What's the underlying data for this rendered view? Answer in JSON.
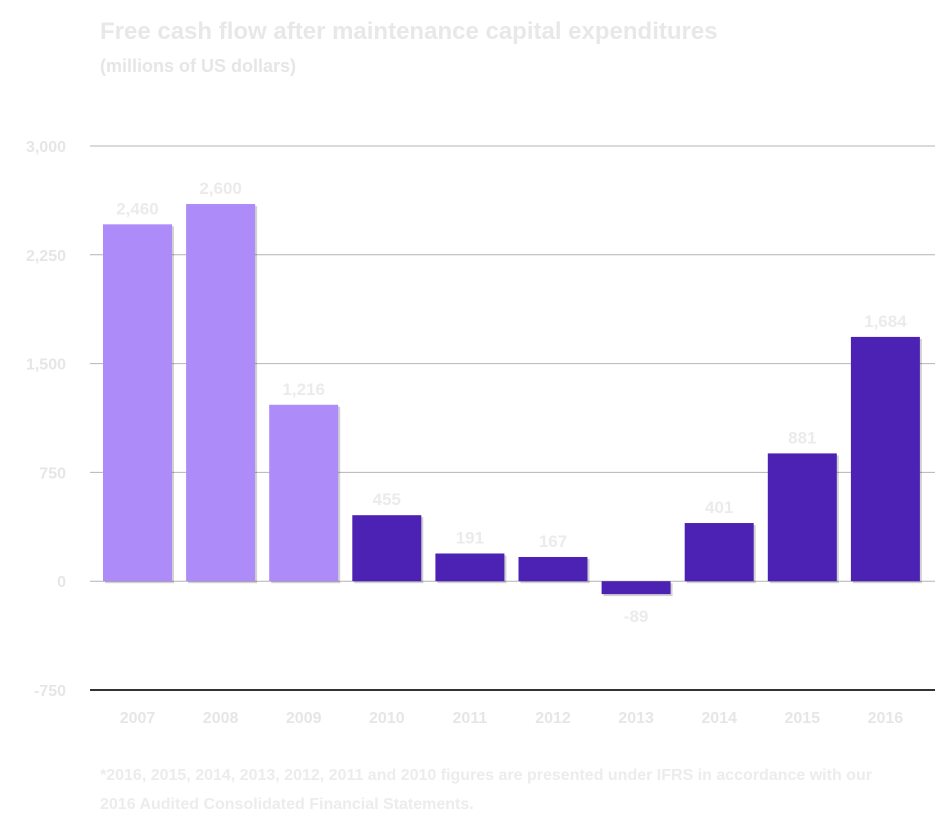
{
  "chart_data": {
    "type": "bar",
    "title": "Free cash flow after maintenance capital expenditures",
    "subtitle": "(millions of US dollars)",
    "categories": [
      "2007",
      "2008",
      "2009",
      "2010",
      "2011",
      "2012",
      "2013",
      "2014",
      "2015",
      "2016"
    ],
    "values": [
      2460,
      2600,
      1216,
      455,
      191,
      167,
      -89,
      401,
      881,
      1684
    ],
    "value_labels": [
      "2,460",
      "2,600",
      "1,216",
      "455",
      "191",
      "167",
      "-89",
      "401",
      "881",
      "1,684"
    ],
    "bar_colors": [
      "#ad8cfa",
      "#ad8cfa",
      "#ad8cfa",
      "#4c22b5",
      "#4c22b5",
      "#4c22b5",
      "#4c22b5",
      "#4c22b5",
      "#4c22b5",
      "#4c22b5"
    ],
    "yticks": [
      3000,
      2250,
      1500,
      750,
      0,
      -750
    ],
    "ytick_labels": [
      "3,000",
      "2,250",
      "1,500",
      "750",
      "0",
      "-750"
    ],
    "ylim": [
      -750,
      3000
    ],
    "grid": true,
    "legend": "none",
    "footnote": "*2016, 2015, 2014, 2013, 2012, 2011 and 2010 figures are presented under IFRS in accordance with our 2016 Audited Consolidated Financial Statements."
  },
  "colors": {
    "grid_line": "#b4b4b4",
    "axis_line": "#333333",
    "text": "#e8e8e8"
  }
}
